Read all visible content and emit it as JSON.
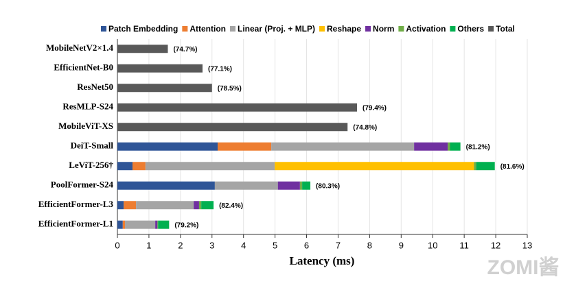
{
  "chart_data": {
    "type": "stacked-barh",
    "categories": [
      "MobileNetV2×1.4",
      "EfficientNet-B0",
      "ResNet50",
      "ResMLP-S24",
      "MobileViT-XS",
      "DeiT-Small",
      "LeViT-256†",
      "PoolFormer-S24",
      "EfficientFormer-L3",
      "EfficientFormer-L1"
    ],
    "series": [
      {
        "name": "Patch Embedding",
        "color": "#2f5597",
        "values": [
          null,
          null,
          null,
          null,
          null,
          3.18,
          0.48,
          3.09,
          0.2,
          0.17
        ]
      },
      {
        "name": "Attention",
        "color": "#ed7d31",
        "values": [
          null,
          null,
          null,
          null,
          null,
          1.7,
          0.41,
          null,
          0.39,
          0.07
        ]
      },
      {
        "name": "Linear (Proj. + MLP)",
        "color": "#a5a5a5",
        "values": [
          null,
          null,
          null,
          null,
          null,
          4.53,
          4.1,
          2.0,
          1.83,
          0.96
        ]
      },
      {
        "name": "Reshape",
        "color": "#ffc000",
        "values": [
          null,
          null,
          null,
          null,
          null,
          null,
          6.32,
          null,
          null,
          null
        ]
      },
      {
        "name": "Norm",
        "color": "#7030a0",
        "values": [
          null,
          null,
          null,
          null,
          null,
          1.07,
          null,
          0.7,
          0.17,
          0.07
        ]
      },
      {
        "name": "Activation",
        "color": "#70ad47",
        "values": [
          null,
          null,
          null,
          null,
          null,
          0.07,
          0.07,
          0.07,
          0.07,
          0.02
        ]
      },
      {
        "name": "Others",
        "color": "#00b050",
        "values": [
          null,
          null,
          null,
          null,
          null,
          0.33,
          0.59,
          0.26,
          0.39,
          0.35
        ]
      },
      {
        "name": "Total",
        "color": "#595959",
        "values": [
          1.6,
          2.7,
          3.0,
          7.6,
          7.3,
          null,
          null,
          null,
          null,
          null
        ]
      }
    ],
    "annotations": [
      "(74.7%)",
      "(77.1%)",
      "(78.5%)",
      "(79.4%)",
      "(74.8%)",
      "(81.2%)",
      "(81.6%)",
      "(80.3%)",
      "(82.4%)",
      "(79.2%)"
    ],
    "xlabel": "Latency (ms)",
    "xlim": [
      0,
      13
    ],
    "xticks": [
      0,
      1,
      2,
      3,
      4,
      5,
      6,
      7,
      8,
      9,
      10,
      11,
      12,
      13
    ],
    "grid": true,
    "legend": "top",
    "watermark": "ZOMI酱"
  }
}
